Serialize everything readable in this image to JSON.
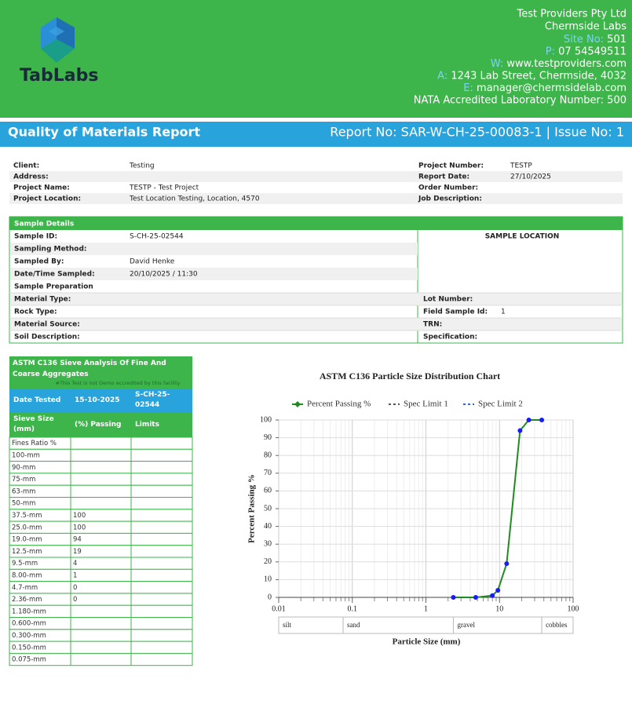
{
  "header": {
    "logo_text": "TabLabs",
    "company": "Test Providers Pty Ltd",
    "lab": "Chermside Labs",
    "contacts": [
      {
        "label": "Site No:",
        "value": "501"
      },
      {
        "label": "P:",
        "value": "07 54549511"
      },
      {
        "label": "W:",
        "value": "www.testproviders.com"
      },
      {
        "label": "A:",
        "value": "1243 Lab Street, Chermside, 4032"
      },
      {
        "label": "E:",
        "value": "manager@chermsidelab.com"
      }
    ],
    "nata": "NATA Accredited Laboratory Number: 500"
  },
  "report_bar": {
    "title": "Quality of Materials Report",
    "report_no": "Report No: SAR-W-CH-25-00083-1 | Issue No: 1"
  },
  "client": {
    "left": [
      {
        "label": "Client:",
        "value": "Testing"
      },
      {
        "label": "Address:"
      },
      {
        "label": "Project Name:",
        "value": "TESTP - Test Project"
      },
      {
        "label": "Project Location:",
        "value": "Test Location Testing, Location, 4570"
      }
    ],
    "right": [
      {
        "label": "Project Number:",
        "value": "TESTP"
      },
      {
        "label": "Report Date:",
        "value": "27/10/2025"
      },
      {
        "label": "Order Number:"
      },
      {
        "label": "Job Description:"
      }
    ]
  },
  "sample": {
    "title": "Sample Details",
    "location_title": "SAMPLE LOCATION",
    "left": [
      {
        "label": "Sample ID:",
        "value": "S-CH-25-02544"
      },
      {
        "label": "Sampling Method:"
      },
      {
        "label": "Sampled By:",
        "value": "David Henke"
      },
      {
        "label": "Date/Time Sampled:",
        "value": "20/10/2025 / 11:30"
      },
      {
        "label": "Sample Preparation"
      },
      {
        "label": "Material Type:"
      },
      {
        "label": "Rock Type:"
      },
      {
        "label": "Material Source:"
      },
      {
        "label": "Soil Description:"
      }
    ],
    "right": [
      {
        "label": "Lot Number:"
      },
      {
        "label": "Field Sample Id:",
        "value": "1"
      },
      {
        "label": "TRN:"
      },
      {
        "label": "Specification:"
      }
    ]
  },
  "sieve": {
    "title": "ASTM C136 Sieve Analysis Of Fine And Coarse Aggregates",
    "note": "#This Test is not Demo accredited by this facility",
    "date_row": [
      "Date Tested",
      "15-10-2025",
      "S-CH-25-02544"
    ],
    "header": [
      "Sieve Size (mm)",
      "(%) Passing",
      "Limits"
    ],
    "rows": [
      {
        "size": "Fines Ratio %"
      },
      {
        "size": "100-mm"
      },
      {
        "size": "90-mm"
      },
      {
        "size": "75-mm"
      },
      {
        "size": "63-mm"
      },
      {
        "size": "50-mm"
      },
      {
        "size": "37.5-mm",
        "passing": 100
      },
      {
        "size": "25.0-mm",
        "passing": 100
      },
      {
        "size": "19.0-mm",
        "passing": 94
      },
      {
        "size": "12.5-mm",
        "passing": 19
      },
      {
        "size": "9.5-mm",
        "passing": 4
      },
      {
        "size": "8.00-mm",
        "passing": 1
      },
      {
        "size": "4.7-mm",
        "passing": 0
      },
      {
        "size": "2.36-mm",
        "passing": 0
      },
      {
        "size": "1.180-mm"
      },
      {
        "size": "0.600-mm"
      },
      {
        "size": "0.300-mm"
      },
      {
        "size": "0.150-mm"
      },
      {
        "size": "0.075-mm"
      }
    ]
  },
  "chart_data": {
    "type": "line",
    "title": "ASTM C136 Particle Size Distribution Chart",
    "x_label": "Particle Size (mm)",
    "y_label": "Percent Passing %",
    "x": [
      2.36,
      4.75,
      8,
      9.5,
      12.5,
      19,
      25,
      37.5
    ],
    "series": [
      {
        "name": "Percent Passing %",
        "color": "#1e8c1e",
        "marker_color": "#1a1aff",
        "values": [
          0,
          0,
          1,
          4,
          19,
          94,
          100,
          100
        ]
      },
      {
        "name": "Spec Limit 1",
        "color": "#555555",
        "dashed": true,
        "values": [
          null,
          null,
          null,
          null,
          null,
          null,
          null,
          null
        ]
      },
      {
        "name": "Spec Limit 2",
        "color": "#3366cc",
        "dashed": true,
        "values": [
          null,
          null,
          null,
          null,
          null,
          null,
          null,
          null
        ]
      }
    ],
    "xscale": "log",
    "xlim": [
      0.01,
      100
    ],
    "xticks": [
      0.01,
      0.1,
      1,
      10,
      100
    ],
    "ylim": [
      0,
      100
    ],
    "yticks": [
      0,
      10,
      20,
      30,
      40,
      50,
      60,
      70,
      80,
      90,
      100
    ],
    "grid": true,
    "legend": "top",
    "bands": [
      {
        "label": "silt",
        "range": [
          0.01,
          0.075
        ]
      },
      {
        "label": "sand",
        "range": [
          0.075,
          2.36
        ]
      },
      {
        "label": "gravel",
        "range": [
          2.36,
          37.5
        ]
      },
      {
        "label": "cobbles",
        "range": [
          37.5,
          100
        ]
      }
    ]
  }
}
